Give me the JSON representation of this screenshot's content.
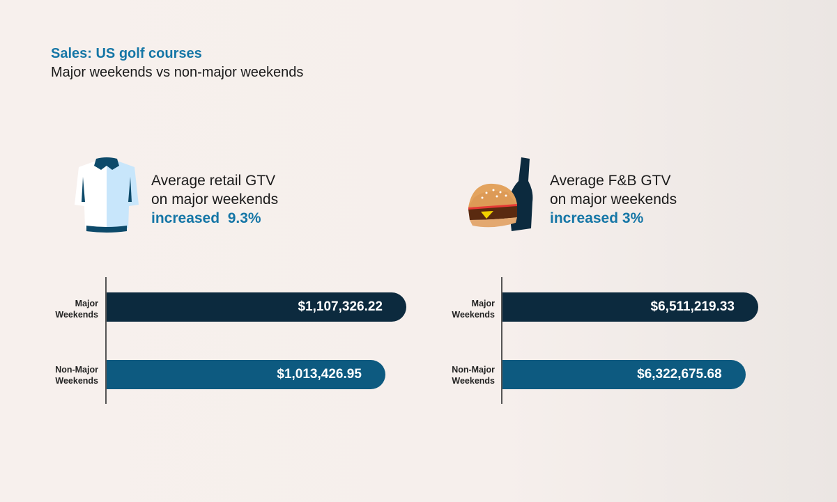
{
  "title": "Sales: US golf courses",
  "subtitle": "Major weekends vs non-major weekends",
  "colors": {
    "accent": "#1576a6",
    "major": "#0c2a3e",
    "non_major": "#0d5a80"
  },
  "panels": [
    {
      "icon": "shirt-icon",
      "line1": "Average retail GTV",
      "line2": "on major weekends",
      "highlight": "increased  9.3%"
    },
    {
      "icon": "burger-and-bottle-icon",
      "line1": "Average F&B GTV",
      "line2": "on major weekends",
      "highlight": "increased 3%"
    }
  ],
  "chart_data": [
    {
      "type": "bar",
      "orientation": "horizontal",
      "categories": [
        "Major Weekends",
        "Non-Major Weekends"
      ],
      "values": [
        1107326.22,
        1013426.95
      ],
      "data_labels": [
        "$1,107,326.22",
        "$1,013,426.95"
      ]
    },
    {
      "type": "bar",
      "orientation": "horizontal",
      "categories": [
        "Major Weekends",
        "Non-Major Weekends"
      ],
      "values": [
        6511219.33,
        6322675.68
      ],
      "data_labels": [
        "$6,511,219.33",
        "$6,322,675.68"
      ]
    }
  ]
}
